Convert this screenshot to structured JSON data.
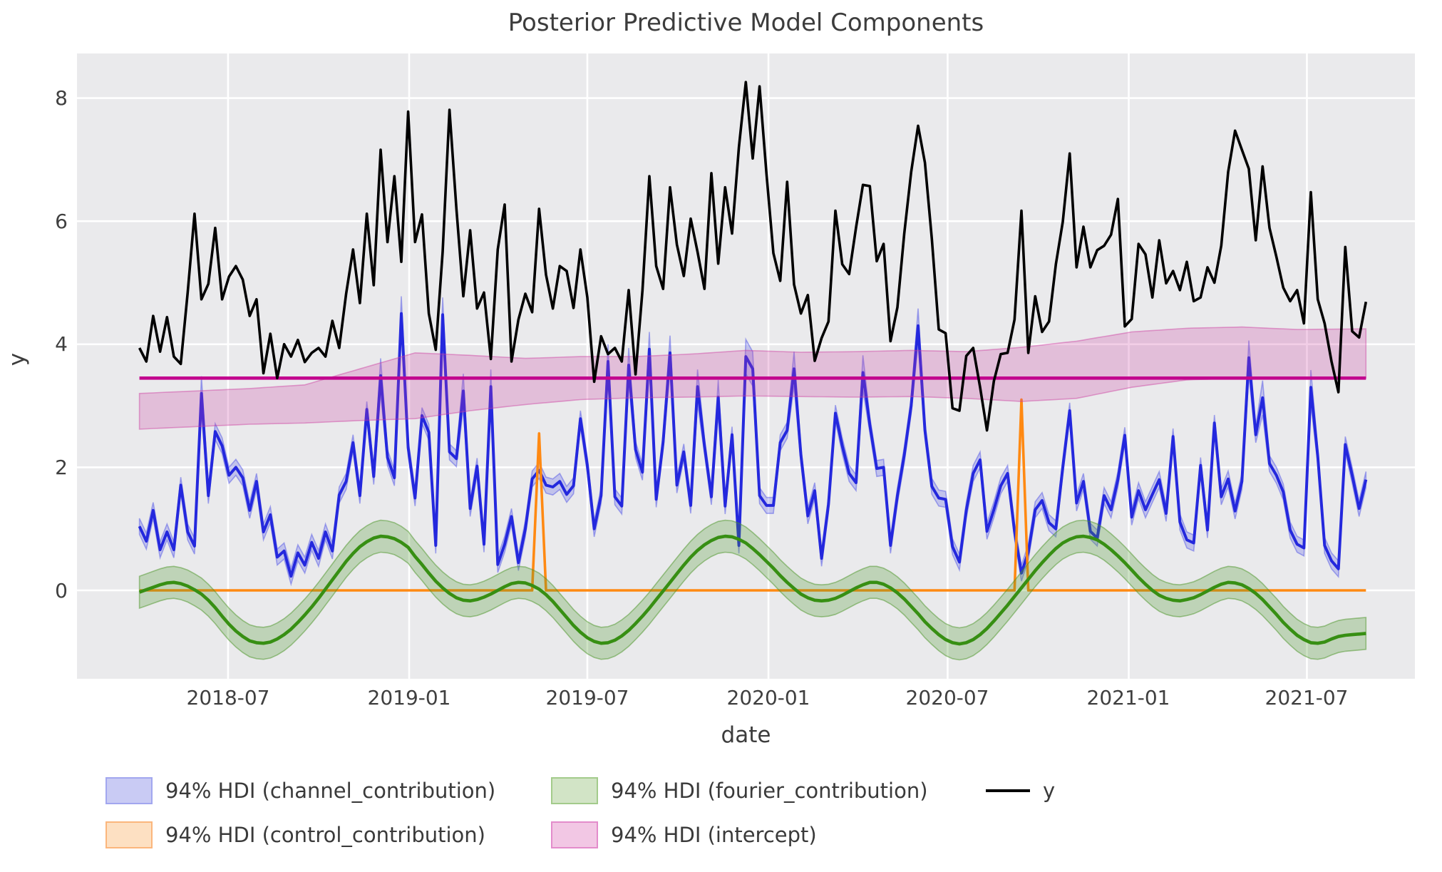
{
  "title": "Posterior Predictive Model Components",
  "axes": {
    "xlabel": "date",
    "ylabel": "y",
    "x_tick_labels": [
      "2018-07",
      "2019-01",
      "2019-07",
      "2020-01",
      "2020-07",
      "2021-01",
      "2021-07"
    ],
    "x_tick_dates": [
      "2018-07-01",
      "2019-01-01",
      "2019-07-01",
      "2020-01-01",
      "2020-07-01",
      "2021-01-01",
      "2021-07-01"
    ],
    "y_tick_labels": [
      "0",
      "2",
      "4",
      "6",
      "8"
    ],
    "y_tick_values": [
      0,
      2,
      4,
      6,
      8
    ]
  },
  "style": {
    "plot_bg": "#eaeaec",
    "grid_color": "#ffffff",
    "y_line": "#000000",
    "channel_line": "#2428dd",
    "channel_fill": "rgba(70,75,230,0.25)",
    "channel_edge": "rgba(70,75,230,0.45)",
    "control_line": "#ff8912",
    "control_fill": "rgba(255,150,50,0.30)",
    "fourier_line": "#378f13",
    "fourier_fill": "rgba(75,150,40,0.27)",
    "fourier_edge": "rgba(75,150,40,0.50)",
    "intercept_line": "#c2058e",
    "intercept_fill": "rgba(205,60,160,0.25)",
    "intercept_edge": "rgba(205,60,160,0.45)"
  },
  "legend": {
    "items": [
      {
        "label": "94% HDI (channel_contribution)",
        "fill": "#c9cbf4",
        "edge": "#a2a7ef",
        "kind": "patch"
      },
      {
        "label": "94% HDI (control_contribution)",
        "fill": "#fde0c2",
        "edge": "#fbb67c",
        "kind": "patch"
      },
      {
        "label": "94% HDI (fourier_contribution)",
        "fill": "#d2e4c6",
        "edge": "#a3cb8b",
        "kind": "patch"
      },
      {
        "label": "94% HDI (intercept)",
        "fill": "#f2c7e4",
        "edge": "#e38ccb",
        "kind": "patch"
      },
      {
        "label": "y",
        "color": "#000000",
        "kind": "line"
      }
    ]
  },
  "chart_data": {
    "type": "line",
    "title": "Posterior Predictive Model Components",
    "xlabel": "date",
    "ylabel": "y",
    "grid": true,
    "legend_position": "below",
    "ylim": [
      -1.45,
      8.73
    ],
    "x_domain": [
      "2018-02-12",
      "2021-10-15"
    ],
    "x": {
      "start": "2018-04-02",
      "freq_days": 7,
      "n": 179
    },
    "series": [
      {
        "name": "y",
        "style": "line",
        "values": [
          3.94,
          3.72,
          4.46,
          3.88,
          4.44,
          3.8,
          3.68,
          4.84,
          6.12,
          4.73,
          4.98,
          5.89,
          4.73,
          5.1,
          5.27,
          5.05,
          4.46,
          4.73,
          3.53,
          4.17,
          3.45,
          4.0,
          3.8,
          4.07,
          3.71,
          3.86,
          3.94,
          3.8,
          4.38,
          3.94,
          4.82,
          5.54,
          4.67,
          6.12,
          4.96,
          7.16,
          5.66,
          6.73,
          5.34,
          7.78,
          5.66,
          6.11,
          4.5,
          3.91,
          5.5,
          7.81,
          6.2,
          4.78,
          5.85,
          4.58,
          4.84,
          3.76,
          5.54,
          6.27,
          3.72,
          4.4,
          4.82,
          4.52,
          6.2,
          5.13,
          4.58,
          5.27,
          5.19,
          4.59,
          5.54,
          4.76,
          3.39,
          4.13,
          3.84,
          3.94,
          3.72,
          4.88,
          3.51,
          4.87,
          6.73,
          5.27,
          4.9,
          6.55,
          5.62,
          5.11,
          6.04,
          5.5,
          4.9,
          6.78,
          5.31,
          6.55,
          5.8,
          7.2,
          8.26,
          7.02,
          8.19,
          6.77,
          5.48,
          5.03,
          6.64,
          4.97,
          4.5,
          4.8,
          3.73,
          4.1,
          4.37,
          6.17,
          5.3,
          5.14,
          5.9,
          6.59,
          6.57,
          5.35,
          5.63,
          4.05,
          4.6,
          5.8,
          6.8,
          7.55,
          6.95,
          5.71,
          4.24,
          4.18,
          2.96,
          2.92,
          3.81,
          3.94,
          3.3,
          2.6,
          3.4,
          3.84,
          3.86,
          4.4,
          6.17,
          3.86,
          4.78,
          4.2,
          4.37,
          5.3,
          5.99,
          7.1,
          5.25,
          5.91,
          5.25,
          5.53,
          5.6,
          5.78,
          6.36,
          4.29,
          4.41,
          5.63,
          5.46,
          4.76,
          5.69,
          4.99,
          5.19,
          4.88,
          5.34,
          4.7,
          4.76,
          5.25,
          5.0,
          5.6,
          6.8,
          7.47,
          7.16,
          6.85,
          5.69,
          6.89,
          5.89,
          5.42,
          4.92,
          4.7,
          4.88,
          4.34,
          6.47,
          4.73,
          4.34,
          3.72,
          3.22,
          5.58,
          4.21,
          4.11,
          4.69
        ]
      },
      {
        "name": "channel_contribution",
        "style": "line+hdi",
        "hdi_label": "94% HDI (channel_contribution)",
        "hdi_halfwidth_base": 0.13,
        "hdi_halfwidth_spike": 0.28,
        "spike_threshold": 3.0,
        "values": [
          1.04,
          0.8,
          1.3,
          0.66,
          0.95,
          0.66,
          1.71,
          0.95,
          0.72,
          3.2,
          1.54,
          2.58,
          2.35,
          1.87,
          2.0,
          1.83,
          1.3,
          1.77,
          0.95,
          1.23,
          0.54,
          0.64,
          0.23,
          0.61,
          0.41,
          0.78,
          0.52,
          0.95,
          0.64,
          1.55,
          1.77,
          2.4,
          1.54,
          2.94,
          1.85,
          3.49,
          2.16,
          1.83,
          4.5,
          2.32,
          1.5,
          2.84,
          2.57,
          0.73,
          4.48,
          2.25,
          2.14,
          3.24,
          1.33,
          2.02,
          0.75,
          3.31,
          0.42,
          0.75,
          1.2,
          0.45,
          1.0,
          1.81,
          1.95,
          1.71,
          1.68,
          1.77,
          1.56,
          1.7,
          2.79,
          2.03,
          1.0,
          1.54,
          3.72,
          1.52,
          1.37,
          3.66,
          2.29,
          1.92,
          3.92,
          1.48,
          2.41,
          3.86,
          1.71,
          2.25,
          1.38,
          3.31,
          2.35,
          1.52,
          3.14,
          1.37,
          2.53,
          0.73,
          3.8,
          3.6,
          1.54,
          1.38,
          1.38,
          2.4,
          2.6,
          3.6,
          2.2,
          1.21,
          1.62,
          0.52,
          1.4,
          2.88,
          2.35,
          1.9,
          1.75,
          3.54,
          2.69,
          1.98,
          2.0,
          0.73,
          1.54,
          2.2,
          3.0,
          4.3,
          2.6,
          1.69,
          1.5,
          1.48,
          0.71,
          0.46,
          1.3,
          1.9,
          2.12,
          0.96,
          1.31,
          1.7,
          1.9,
          0.96,
          0.28,
          0.62,
          1.31,
          1.46,
          1.1,
          1.0,
          2.0,
          2.92,
          1.42,
          1.77,
          0.96,
          0.85,
          1.54,
          1.31,
          1.8,
          2.52,
          1.19,
          1.62,
          1.31,
          1.56,
          1.8,
          1.25,
          2.5,
          1.11,
          0.82,
          0.77,
          2.03,
          0.98,
          2.72,
          1.52,
          1.81,
          1.29,
          1.77,
          3.78,
          2.53,
          3.13,
          2.06,
          1.87,
          1.6,
          0.98,
          0.75,
          0.69,
          3.3,
          2.18,
          0.73,
          0.48,
          0.35,
          2.37,
          1.87,
          1.33,
          1.8
        ]
      },
      {
        "name": "control_contribution",
        "style": "line+hdi",
        "hdi_label": "94% HDI (control_contribution)",
        "baseline": 0,
        "spikes": [
          {
            "date": "2019-05-13",
            "peak": 2.55,
            "hdi_halfwidth": 0.08
          },
          {
            "date": "2020-09-14",
            "peak": 3.1,
            "hdi_halfwidth": 0.08
          }
        ]
      },
      {
        "name": "fourier_contribution",
        "style": "line+hdi",
        "hdi_label": "94% HDI (fourier_contribution)",
        "hdi_halfwidth_base": 0.26,
        "values": [
          -0.03,
          0.01,
          0.05,
          0.09,
          0.12,
          0.13,
          0.11,
          0.07,
          0.01,
          -0.06,
          -0.16,
          -0.28,
          -0.42,
          -0.55,
          -0.66,
          -0.75,
          -0.82,
          -0.85,
          -0.86,
          -0.84,
          -0.79,
          -0.72,
          -0.63,
          -0.52,
          -0.4,
          -0.27,
          -0.13,
          0.02,
          0.17,
          0.32,
          0.47,
          0.6,
          0.71,
          0.79,
          0.85,
          0.88,
          0.87,
          0.84,
          0.78,
          0.7,
          0.55,
          0.42,
          0.28,
          0.15,
          0.04,
          -0.05,
          -0.12,
          -0.16,
          -0.17,
          -0.15,
          -0.11,
          -0.06,
          0.0,
          0.06,
          0.11,
          0.13,
          0.12,
          0.08,
          0.02,
          -0.07,
          -0.18,
          -0.31,
          -0.44,
          -0.57,
          -0.68,
          -0.77,
          -0.83,
          -0.86,
          -0.85,
          -0.81,
          -0.74,
          -0.65,
          -0.54,
          -0.42,
          -0.29,
          -0.15,
          -0.01,
          0.13,
          0.27,
          0.41,
          0.54,
          0.65,
          0.74,
          0.81,
          0.86,
          0.88,
          0.87,
          0.83,
          0.77,
          0.68,
          0.58,
          0.47,
          0.36,
          0.24,
          0.13,
          0.03,
          -0.06,
          -0.12,
          -0.16,
          -0.17,
          -0.16,
          -0.13,
          -0.08,
          -0.02,
          0.04,
          0.09,
          0.13,
          0.13,
          0.1,
          0.04,
          -0.04,
          -0.14,
          -0.26,
          -0.38,
          -0.51,
          -0.62,
          -0.72,
          -0.8,
          -0.85,
          -0.87,
          -0.85,
          -0.8,
          -0.72,
          -0.62,
          -0.5,
          -0.37,
          -0.24,
          -0.1,
          0.04,
          0.18,
          0.32,
          0.45,
          0.57,
          0.68,
          0.77,
          0.83,
          0.87,
          0.88,
          0.86,
          0.82,
          0.75,
          0.66,
          0.56,
          0.45,
          0.33,
          0.21,
          0.1,
          0.0,
          -0.08,
          -0.13,
          -0.16,
          -0.17,
          -0.15,
          -0.12,
          -0.07,
          -0.01,
          0.05,
          0.1,
          0.13,
          0.12,
          0.09,
          0.03,
          -0.05,
          -0.15,
          -0.27,
          -0.39,
          -0.52,
          -0.63,
          -0.73,
          -0.8,
          -0.85,
          -0.86,
          -0.84,
          -0.79,
          -0.75,
          -0.73,
          -0.72,
          -0.71,
          -0.7
        ]
      },
      {
        "name": "intercept",
        "style": "line+hdi",
        "hdi_label": "94% HDI (intercept)",
        "mean": 3.45,
        "hdi_anchors": [
          {
            "i": 0,
            "lo": 2.62,
            "hi": 3.2
          },
          {
            "i": 8,
            "lo": 2.66,
            "hi": 3.24
          },
          {
            "i": 16,
            "lo": 2.7,
            "hi": 3.28
          },
          {
            "i": 24,
            "lo": 2.72,
            "hi": 3.34
          },
          {
            "i": 32,
            "lo": 2.76,
            "hi": 3.6
          },
          {
            "i": 40,
            "lo": 2.79,
            "hi": 3.86
          },
          {
            "i": 48,
            "lo": 2.92,
            "hi": 3.82
          },
          {
            "i": 56,
            "lo": 3.02,
            "hi": 3.77
          },
          {
            "i": 64,
            "lo": 3.1,
            "hi": 3.8
          },
          {
            "i": 72,
            "lo": 3.13,
            "hi": 3.8
          },
          {
            "i": 80,
            "lo": 3.14,
            "hi": 3.84
          },
          {
            "i": 88,
            "lo": 3.16,
            "hi": 3.9
          },
          {
            "i": 96,
            "lo": 3.15,
            "hi": 3.87
          },
          {
            "i": 104,
            "lo": 3.14,
            "hi": 3.88
          },
          {
            "i": 112,
            "lo": 3.15,
            "hi": 3.9
          },
          {
            "i": 120,
            "lo": 3.12,
            "hi": 3.88
          },
          {
            "i": 128,
            "lo": 3.07,
            "hi": 3.95
          },
          {
            "i": 136,
            "lo": 3.12,
            "hi": 4.05
          },
          {
            "i": 144,
            "lo": 3.3,
            "hi": 4.2
          },
          {
            "i": 152,
            "lo": 3.42,
            "hi": 4.26
          },
          {
            "i": 160,
            "lo": 3.45,
            "hi": 4.28
          },
          {
            "i": 168,
            "lo": 3.44,
            "hi": 4.24
          },
          {
            "i": 178,
            "lo": 3.45,
            "hi": 4.25
          }
        ]
      }
    ]
  }
}
